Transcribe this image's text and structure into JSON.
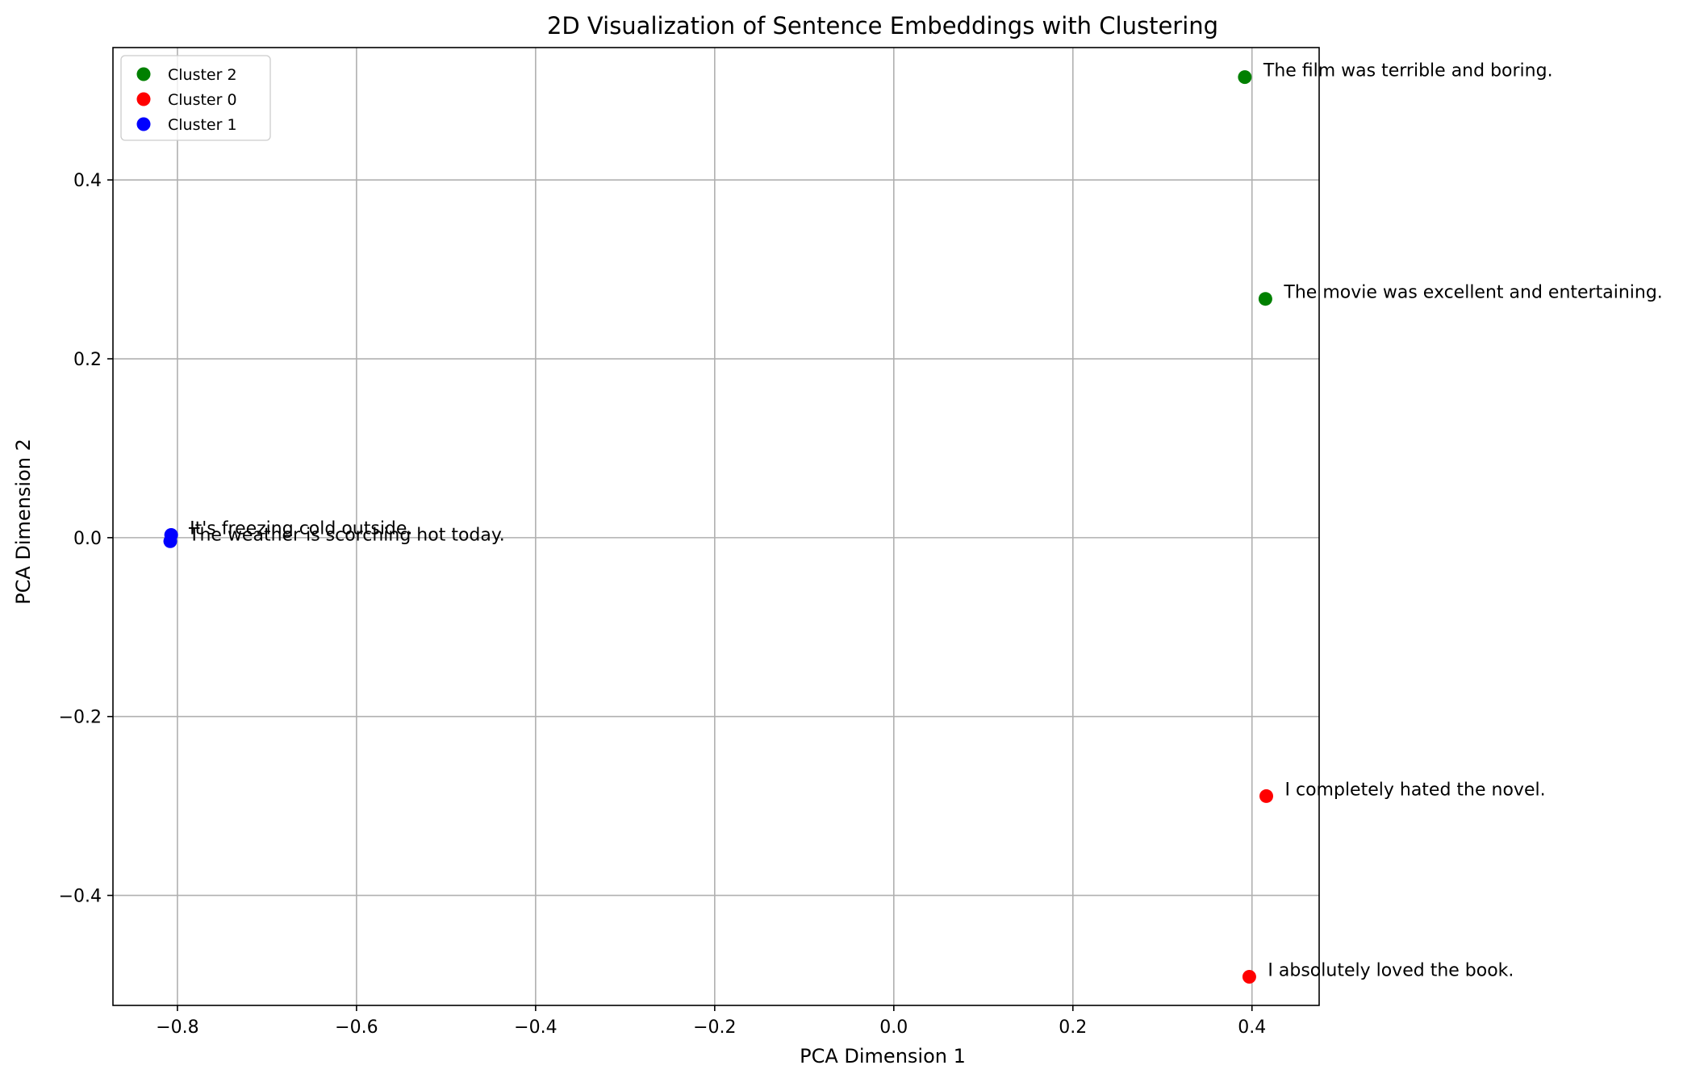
{
  "chart_data": {
    "type": "scatter",
    "title": "2D Visualization of Sentence Embeddings with Clustering",
    "xlabel": "PCA Dimension 1",
    "ylabel": "PCA Dimension 2",
    "xlim": [
      -0.872,
      0.475
    ],
    "ylim": [
      -0.523,
      0.548
    ],
    "xticks": [
      -0.8,
      -0.6,
      -0.4,
      -0.2,
      0.0,
      0.2,
      0.4
    ],
    "xtick_labels": [
      "−0.8",
      "−0.6",
      "−0.4",
      "−0.2",
      "0.0",
      "0.2",
      "0.4"
    ],
    "yticks": [
      -0.4,
      -0.2,
      0.0,
      0.2,
      0.4
    ],
    "ytick_labels": [
      "−0.4",
      "−0.2",
      "0.0",
      "0.2",
      "0.4"
    ],
    "grid": true,
    "legend_position": "top-left",
    "series": [
      {
        "name": "Cluster 2",
        "color": "#008000",
        "points": [
          {
            "x": 0.392,
            "y": 0.515,
            "label": "The film was terrible and boring."
          },
          {
            "x": 0.415,
            "y": 0.267,
            "label": "The movie was excellent and entertaining."
          }
        ]
      },
      {
        "name": "Cluster 0",
        "color": "#ff0000",
        "points": [
          {
            "x": 0.416,
            "y": -0.289,
            "label": "I completely hated the novel."
          },
          {
            "x": 0.397,
            "y": -0.491,
            "label": "I absolutely loved the book."
          }
        ]
      },
      {
        "name": "Cluster 1",
        "color": "#0000ff",
        "points": [
          {
            "x": -0.807,
            "y": 0.003,
            "label": "It's freezing cold outside."
          },
          {
            "x": -0.808,
            "y": -0.004,
            "label": "The weather is scorching hot today."
          }
        ]
      }
    ]
  }
}
